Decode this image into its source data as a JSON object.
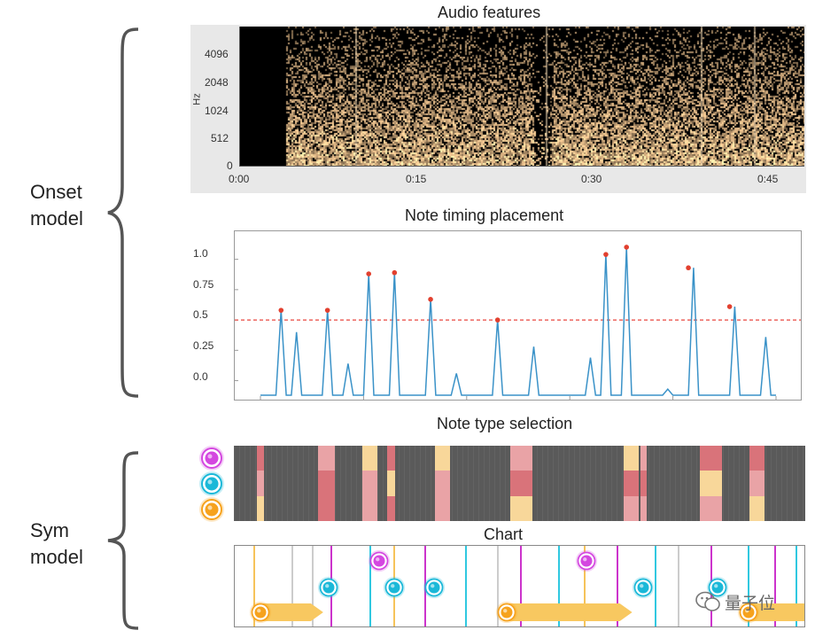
{
  "brace_labels": {
    "onset": "Onset\nmodel",
    "sym": "Sym\nmodel"
  },
  "audio_features": {
    "title": "Audio features",
    "ylabel": "Hz",
    "y_ticks": [
      "4096",
      "2048",
      "1024",
      "512",
      "0"
    ],
    "x_ticks": [
      "0:00",
      "0:15",
      "0:30",
      "0:45"
    ]
  },
  "chart_data": {
    "type": "line",
    "title": "Note timing placement",
    "y_ticks": [
      "1.0",
      "0.75",
      "0.5",
      "0.25",
      "0.0"
    ],
    "ylim": [
      -0.12,
      1.18
    ],
    "threshold": 0.5,
    "x": [
      0,
      1,
      2,
      3,
      4,
      5,
      6,
      7,
      8,
      9,
      10,
      11,
      12,
      13,
      14,
      15,
      16,
      17,
      18,
      19,
      20,
      21,
      22,
      23,
      24,
      25,
      26,
      27,
      28,
      29,
      30,
      31,
      32,
      33,
      34,
      35,
      36,
      37,
      38,
      39,
      40,
      41,
      42,
      43,
      44,
      45,
      46,
      47,
      48,
      49,
      50,
      51,
      52,
      53,
      54,
      55,
      56,
      57,
      58,
      59,
      60,
      61,
      62,
      63,
      64,
      65,
      66,
      67,
      68,
      69,
      70,
      71,
      72,
      73,
      74,
      75,
      76,
      77,
      78,
      79,
      80,
      81,
      82,
      83,
      84,
      85,
      86,
      87,
      88,
      89,
      90,
      91,
      92,
      93,
      94,
      95,
      96,
      97,
      98,
      99,
      100
    ],
    "values": [
      -0.12,
      -0.12,
      -0.12,
      -0.12,
      0.58,
      -0.12,
      -0.12,
      0.4,
      -0.12,
      -0.12,
      -0.12,
      -0.12,
      -0.12,
      0.58,
      -0.12,
      -0.12,
      -0.12,
      0.14,
      -0.12,
      -0.12,
      -0.12,
      0.88,
      -0.12,
      -0.12,
      -0.12,
      -0.12,
      0.89,
      -0.12,
      -0.12,
      -0.12,
      -0.12,
      -0.12,
      -0.12,
      0.67,
      -0.12,
      -0.12,
      -0.12,
      -0.12,
      0.06,
      -0.12,
      -0.12,
      -0.12,
      -0.12,
      -0.12,
      -0.12,
      -0.12,
      0.5,
      -0.12,
      -0.12,
      -0.12,
      -0.12,
      -0.12,
      -0.12,
      0.28,
      -0.12,
      -0.12,
      -0.12,
      -0.12,
      -0.12,
      -0.12,
      -0.12,
      -0.12,
      -0.12,
      -0.12,
      0.19,
      -0.12,
      -0.12,
      1.04,
      -0.12,
      -0.12,
      -0.12,
      1.1,
      -0.12,
      -0.12,
      -0.12,
      -0.12,
      -0.12,
      -0.12,
      -0.12,
      -0.07,
      -0.12,
      -0.12,
      -0.12,
      -0.12,
      0.93,
      -0.12,
      -0.12,
      -0.12,
      -0.12,
      -0.12,
      -0.12,
      -0.12,
      0.61,
      -0.12,
      -0.12,
      -0.12,
      -0.12,
      -0.12,
      0.36,
      -0.12,
      -0.12
    ],
    "peaks": [
      [
        4,
        0.58
      ],
      [
        13,
        0.58
      ],
      [
        21,
        0.88
      ],
      [
        26,
        0.89
      ],
      [
        33,
        0.67
      ],
      [
        46,
        0.5
      ],
      [
        67,
        1.04
      ],
      [
        71,
        1.1
      ],
      [
        83,
        0.93
      ],
      [
        91,
        0.61
      ]
    ],
    "colors": {
      "line": "#3a92c8",
      "threshold": "#e8473f",
      "peak": "#e2402f"
    }
  },
  "note_type": {
    "title": "Note type selection",
    "icons": [
      "purple-note-icon",
      "cyan-note-icon",
      "orange-note-icon"
    ],
    "columns": [
      {
        "pos": 0.04,
        "w": 0.012,
        "colors": [
          "#d9737a",
          "#e9a3a6",
          "#f8d79a"
        ]
      },
      {
        "pos": 0.148,
        "w": 0.028,
        "colors": [
          "#e9a3a6",
          "#d9737a",
          "#d9737a"
        ]
      },
      {
        "pos": 0.225,
        "w": 0.026,
        "colors": [
          "#f8d79a",
          "#e9a3a6",
          "#e9a3a6"
        ]
      },
      {
        "pos": 0.268,
        "w": 0.014,
        "colors": [
          "#d9737a",
          "#f8d79a",
          "#d9737a"
        ]
      },
      {
        "pos": 0.352,
        "w": 0.026,
        "colors": [
          "#f8d79a",
          "#e9a3a6",
          "#e9a3a6"
        ]
      },
      {
        "pos": 0.483,
        "w": 0.04,
        "colors": [
          "#e9a3a6",
          "#d9737a",
          "#f8d79a"
        ]
      },
      {
        "pos": 0.682,
        "w": 0.026,
        "colors": [
          "#f8d79a",
          "#d9737a",
          "#e9a3a6"
        ]
      },
      {
        "pos": 0.711,
        "w": 0.012,
        "colors": [
          "#e9a3a6",
          "#d9737a",
          "#e9a3a6"
        ]
      },
      {
        "pos": 0.816,
        "w": 0.038,
        "colors": [
          "#d9737a",
          "#f8d79a",
          "#e9a3a6"
        ]
      },
      {
        "pos": 0.903,
        "w": 0.026,
        "colors": [
          "#d9737a",
          "#e9a3a6",
          "#f8d79a"
        ]
      }
    ],
    "colors": {
      "bg": "#5a5a5a",
      "purple": "#d447e0",
      "cyan": "#1ab8d8",
      "orange": "#f6a21d"
    }
  },
  "chart": {
    "title": "Chart",
    "lanes": [
      {
        "pos": 0.033,
        "color": "#f6c35a"
      },
      {
        "pos": 0.1,
        "color": "#cccccc"
      },
      {
        "pos": 0.135,
        "color": "#cccccc"
      },
      {
        "pos": 0.168,
        "color": "#cc33cc"
      },
      {
        "pos": 0.237,
        "color": "#30c8e0"
      },
      {
        "pos": 0.278,
        "color": "#f6c35a"
      },
      {
        "pos": 0.333,
        "color": "#cc33cc"
      },
      {
        "pos": 0.405,
        "color": "#30c8e0"
      },
      {
        "pos": 0.46,
        "color": "#cccccc"
      },
      {
        "pos": 0.5,
        "color": "#cc33cc"
      },
      {
        "pos": 0.568,
        "color": "#30c8e0"
      },
      {
        "pos": 0.613,
        "color": "#f6c35a"
      },
      {
        "pos": 0.67,
        "color": "#cc33cc"
      },
      {
        "pos": 0.737,
        "color": "#30c8e0"
      },
      {
        "pos": 0.778,
        "color": "#cccccc"
      },
      {
        "pos": 0.835,
        "color": "#cc33cc"
      },
      {
        "pos": 0.9,
        "color": "#30c8e0"
      },
      {
        "pos": 0.947,
        "color": "#cc33cc"
      },
      {
        "pos": 0.985,
        "color": "#30c8e0"
      }
    ],
    "notes": [
      {
        "pos": 0.028,
        "row": 2,
        "color": "orange",
        "arrow": 0.09
      },
      {
        "pos": 0.148,
        "row": 1,
        "color": "cyan"
      },
      {
        "pos": 0.237,
        "row": 0,
        "color": "purple"
      },
      {
        "pos": 0.263,
        "row": 1,
        "color": "cyan"
      },
      {
        "pos": 0.333,
        "row": 1,
        "color": "cyan"
      },
      {
        "pos": 0.46,
        "row": 2,
        "color": "orange",
        "arrow": 0.2
      },
      {
        "pos": 0.6,
        "row": 0,
        "color": "purple"
      },
      {
        "pos": 0.7,
        "row": 1,
        "color": "cyan"
      },
      {
        "pos": 0.83,
        "row": 1,
        "color": "cyan"
      },
      {
        "pos": 0.885,
        "row": 2,
        "color": "orange",
        "arrow": 0.1
      }
    ]
  },
  "watermark": "量子位"
}
